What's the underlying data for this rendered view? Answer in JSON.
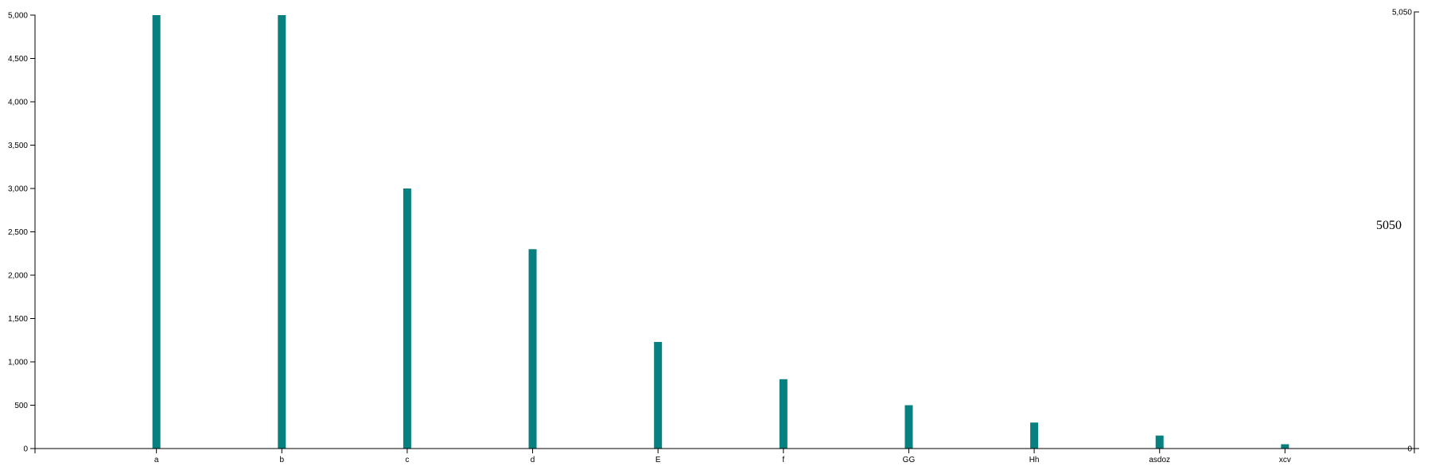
{
  "chart_data": {
    "type": "bar",
    "categories": [
      "a",
      "b",
      "c",
      "d",
      "E",
      "f",
      "GG",
      "Hh",
      "asdoz",
      "xcv"
    ],
    "values": [
      5000,
      5000,
      3000,
      2300,
      1230,
      800,
      500,
      300,
      150,
      50
    ],
    "ylim": [
      0,
      5000
    ],
    "y_ticks": [
      "0",
      "500",
      "1,000",
      "1,500",
      "2,000",
      "2,500",
      "3,000",
      "3,500",
      "4,000",
      "4,500",
      "5,000"
    ],
    "y_tick_values": [
      0,
      500,
      1000,
      1500,
      2000,
      2500,
      3000,
      3500,
      4000,
      4500,
      5000
    ],
    "right_axis": {
      "ylim": [
        0,
        5050
      ],
      "ticks": [
        "0",
        "5,050"
      ],
      "tick_values": [
        0,
        5050
      ],
      "value_label": "5050"
    },
    "bar_color": "#088080",
    "grid": false,
    "title": "",
    "xlabel": "",
    "ylabel": ""
  }
}
